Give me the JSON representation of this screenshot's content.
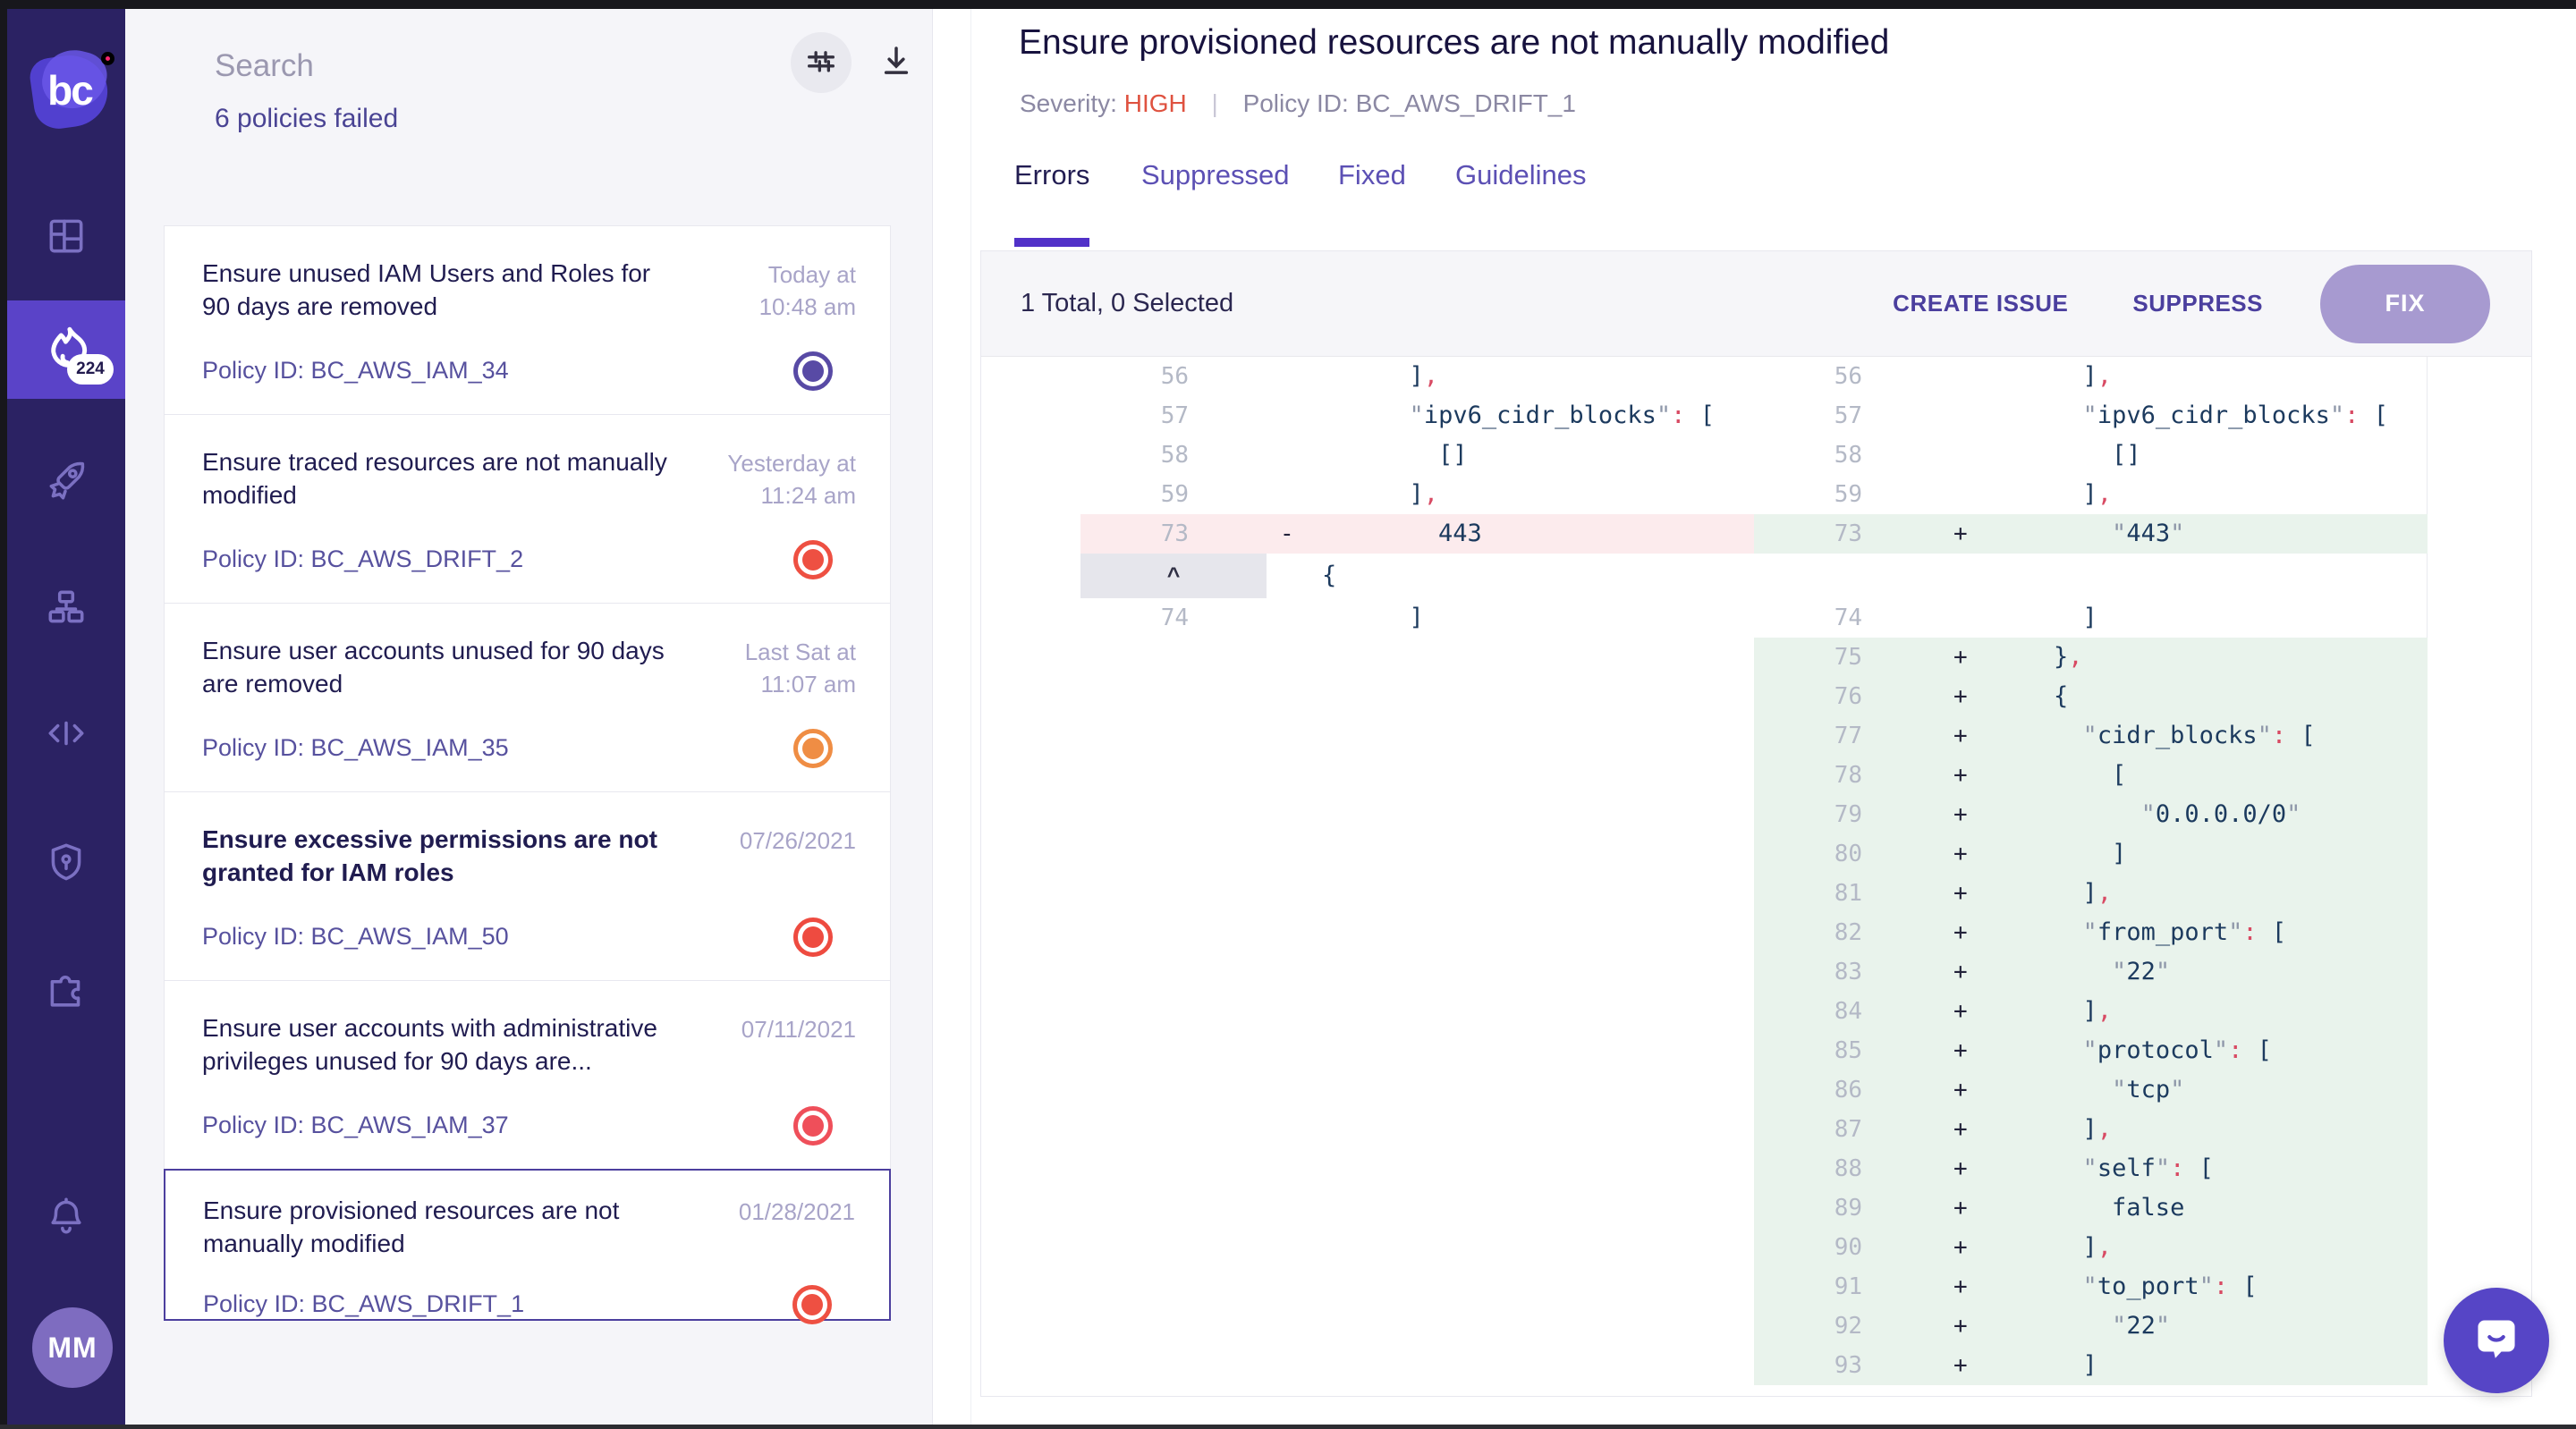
{
  "window": {
    "brand": "bc",
    "badge_count": "224",
    "avatar_initials": "MM"
  },
  "sidebar": {
    "icons": [
      "dashboard-grid",
      "incidents-flame",
      "rocket",
      "org-chart",
      "code",
      "shield",
      "integrations-puzzle",
      "notifications-bell"
    ]
  },
  "search_panel": {
    "search_placeholder": "Search",
    "failed_count_label": "6 policies failed",
    "items": [
      {
        "title": "Ensure unused IAM Users and Roles for 90 days are removed",
        "bold": false,
        "date_line1": "Today at",
        "date_line2": "10:48 am",
        "policy": "Policy ID: BC_AWS_IAM_34",
        "status_color": "#584aa5",
        "selected": false
      },
      {
        "title": "Ensure traced resources are not manually modified",
        "bold": false,
        "date_line1": "Yesterday at",
        "date_line2": "11:24 am",
        "policy": "Policy ID: BC_AWS_DRIFT_2",
        "status_color": "#ee5042",
        "selected": false
      },
      {
        "title": "Ensure user accounts unused for 90 days are removed",
        "bold": false,
        "date_line1": "Last Sat at",
        "date_line2": "11:07 am",
        "policy": "Policy ID: BC_AWS_IAM_35",
        "status_color": "#ef8d44",
        "selected": false
      },
      {
        "title": "Ensure excessive permissions are not granted for IAM roles",
        "bold": true,
        "date_line1": "07/26/2021",
        "date_line2": "",
        "policy": "Policy ID: BC_AWS_IAM_50",
        "status_color": "#ee4b40",
        "selected": false
      },
      {
        "title": "Ensure user accounts with administrative privileges unused for 90 days are...",
        "bold": false,
        "date_line1": "07/11/2021",
        "date_line2": "",
        "policy": "Policy ID: BC_AWS_IAM_37",
        "status_color": "#ef4f5a",
        "selected": false
      },
      {
        "title": "Ensure provisioned resources are not manually modified",
        "bold": false,
        "date_line1": "01/28/2021",
        "date_line2": "",
        "policy": "Policy ID: BC_AWS_DRIFT_1",
        "status_color": "#ee5042",
        "selected": true
      }
    ]
  },
  "detail": {
    "title": "Ensure provisioned resources are not manually modified",
    "severity_label": "Severity:",
    "severity_value": "HIGH",
    "separator": "|",
    "policy_id_text": "Policy ID: BC_AWS_DRIFT_1",
    "tabs": {
      "0": "Errors",
      "1": "Suppressed",
      "2": "Fixed",
      "3": "Guidelines"
    },
    "active_tab": "Errors"
  },
  "toolbar": {
    "summary": "1 Total, 0 Selected",
    "create_issue_label": "CREATE ISSUE",
    "suppress_label": "SUPPRESS",
    "fix_label": "FIX"
  },
  "diff": {
    "expander_glyph": "^",
    "rows": [
      {
        "kind": "context",
        "left": {
          "num": "56",
          "mark": "",
          "code": "      ],"
        },
        "right": {
          "num": "56",
          "mark": "",
          "code": "      ],"
        }
      },
      {
        "kind": "context",
        "left": {
          "num": "57",
          "mark": "",
          "code": "      \"ipv6_cidr_blocks\": ["
        },
        "right": {
          "num": "57",
          "mark": "",
          "code": "      \"ipv6_cidr_blocks\": ["
        }
      },
      {
        "kind": "context",
        "left": {
          "num": "58",
          "mark": "",
          "code": "        []"
        },
        "right": {
          "num": "58",
          "mark": "",
          "code": "        []"
        }
      },
      {
        "kind": "context",
        "left": {
          "num": "59",
          "mark": "",
          "code": "      ],"
        },
        "right": {
          "num": "59",
          "mark": "",
          "code": "      ],"
        }
      },
      {
        "kind": "changed",
        "left": {
          "num": "73",
          "mark": "-",
          "code": "        443"
        },
        "right": {
          "num": "73",
          "mark": "+",
          "code": "        \"443\""
        }
      },
      {
        "kind": "expander",
        "left": {
          "expander": true,
          "code": "{"
        },
        "right": null
      },
      {
        "kind": "context",
        "left": {
          "num": "74",
          "mark": "",
          "code": "      ]"
        },
        "right": {
          "num": "74",
          "mark": "",
          "code": "      ]"
        }
      },
      {
        "kind": "added",
        "left": null,
        "right": {
          "num": "75",
          "mark": "+",
          "code": "    },"
        }
      },
      {
        "kind": "added",
        "left": null,
        "right": {
          "num": "76",
          "mark": "+",
          "code": "    {"
        }
      },
      {
        "kind": "added",
        "left": null,
        "right": {
          "num": "77",
          "mark": "+",
          "code": "      \"cidr_blocks\": ["
        }
      },
      {
        "kind": "added",
        "left": null,
        "right": {
          "num": "78",
          "mark": "+",
          "code": "        ["
        }
      },
      {
        "kind": "added",
        "left": null,
        "right": {
          "num": "79",
          "mark": "+",
          "code": "          \"0.0.0.0/0\""
        }
      },
      {
        "kind": "added",
        "left": null,
        "right": {
          "num": "80",
          "mark": "+",
          "code": "        ]"
        }
      },
      {
        "kind": "added",
        "left": null,
        "right": {
          "num": "81",
          "mark": "+",
          "code": "      ],"
        }
      },
      {
        "kind": "added",
        "left": null,
        "right": {
          "num": "82",
          "mark": "+",
          "code": "      \"from_port\": ["
        }
      },
      {
        "kind": "added",
        "left": null,
        "right": {
          "num": "83",
          "mark": "+",
          "code": "        \"22\""
        }
      },
      {
        "kind": "added",
        "left": null,
        "right": {
          "num": "84",
          "mark": "+",
          "code": "      ],"
        }
      },
      {
        "kind": "added",
        "left": null,
        "right": {
          "num": "85",
          "mark": "+",
          "code": "      \"protocol\": ["
        }
      },
      {
        "kind": "added",
        "left": null,
        "right": {
          "num": "86",
          "mark": "+",
          "code": "        \"tcp\""
        }
      },
      {
        "kind": "added",
        "left": null,
        "right": {
          "num": "87",
          "mark": "+",
          "code": "      ],"
        }
      },
      {
        "kind": "added",
        "left": null,
        "right": {
          "num": "88",
          "mark": "+",
          "code": "      \"self\": ["
        }
      },
      {
        "kind": "added",
        "left": null,
        "right": {
          "num": "89",
          "mark": "+",
          "code": "        false"
        }
      },
      {
        "kind": "added",
        "left": null,
        "right": {
          "num": "90",
          "mark": "+",
          "code": "      ],"
        }
      },
      {
        "kind": "added",
        "left": null,
        "right": {
          "num": "91",
          "mark": "+",
          "code": "      \"to_port\": ["
        }
      },
      {
        "kind": "added",
        "left": null,
        "right": {
          "num": "92",
          "mark": "+",
          "code": "        \"22\""
        }
      },
      {
        "kind": "added",
        "left": null,
        "right": {
          "num": "93",
          "mark": "+",
          "code": "      ]"
        }
      }
    ]
  },
  "colors": {
    "accent": "#5131c8",
    "sidebar_bg": "#2b2263",
    "sidebar_active_bg": "#5a43c8",
    "severity_high": "#df5240",
    "added_row_bg": "#e9f3ec",
    "removed_row_bg": "#fcebed",
    "fix_button_bg": "#a79ad0",
    "brand_dot": "#f8256e"
  }
}
